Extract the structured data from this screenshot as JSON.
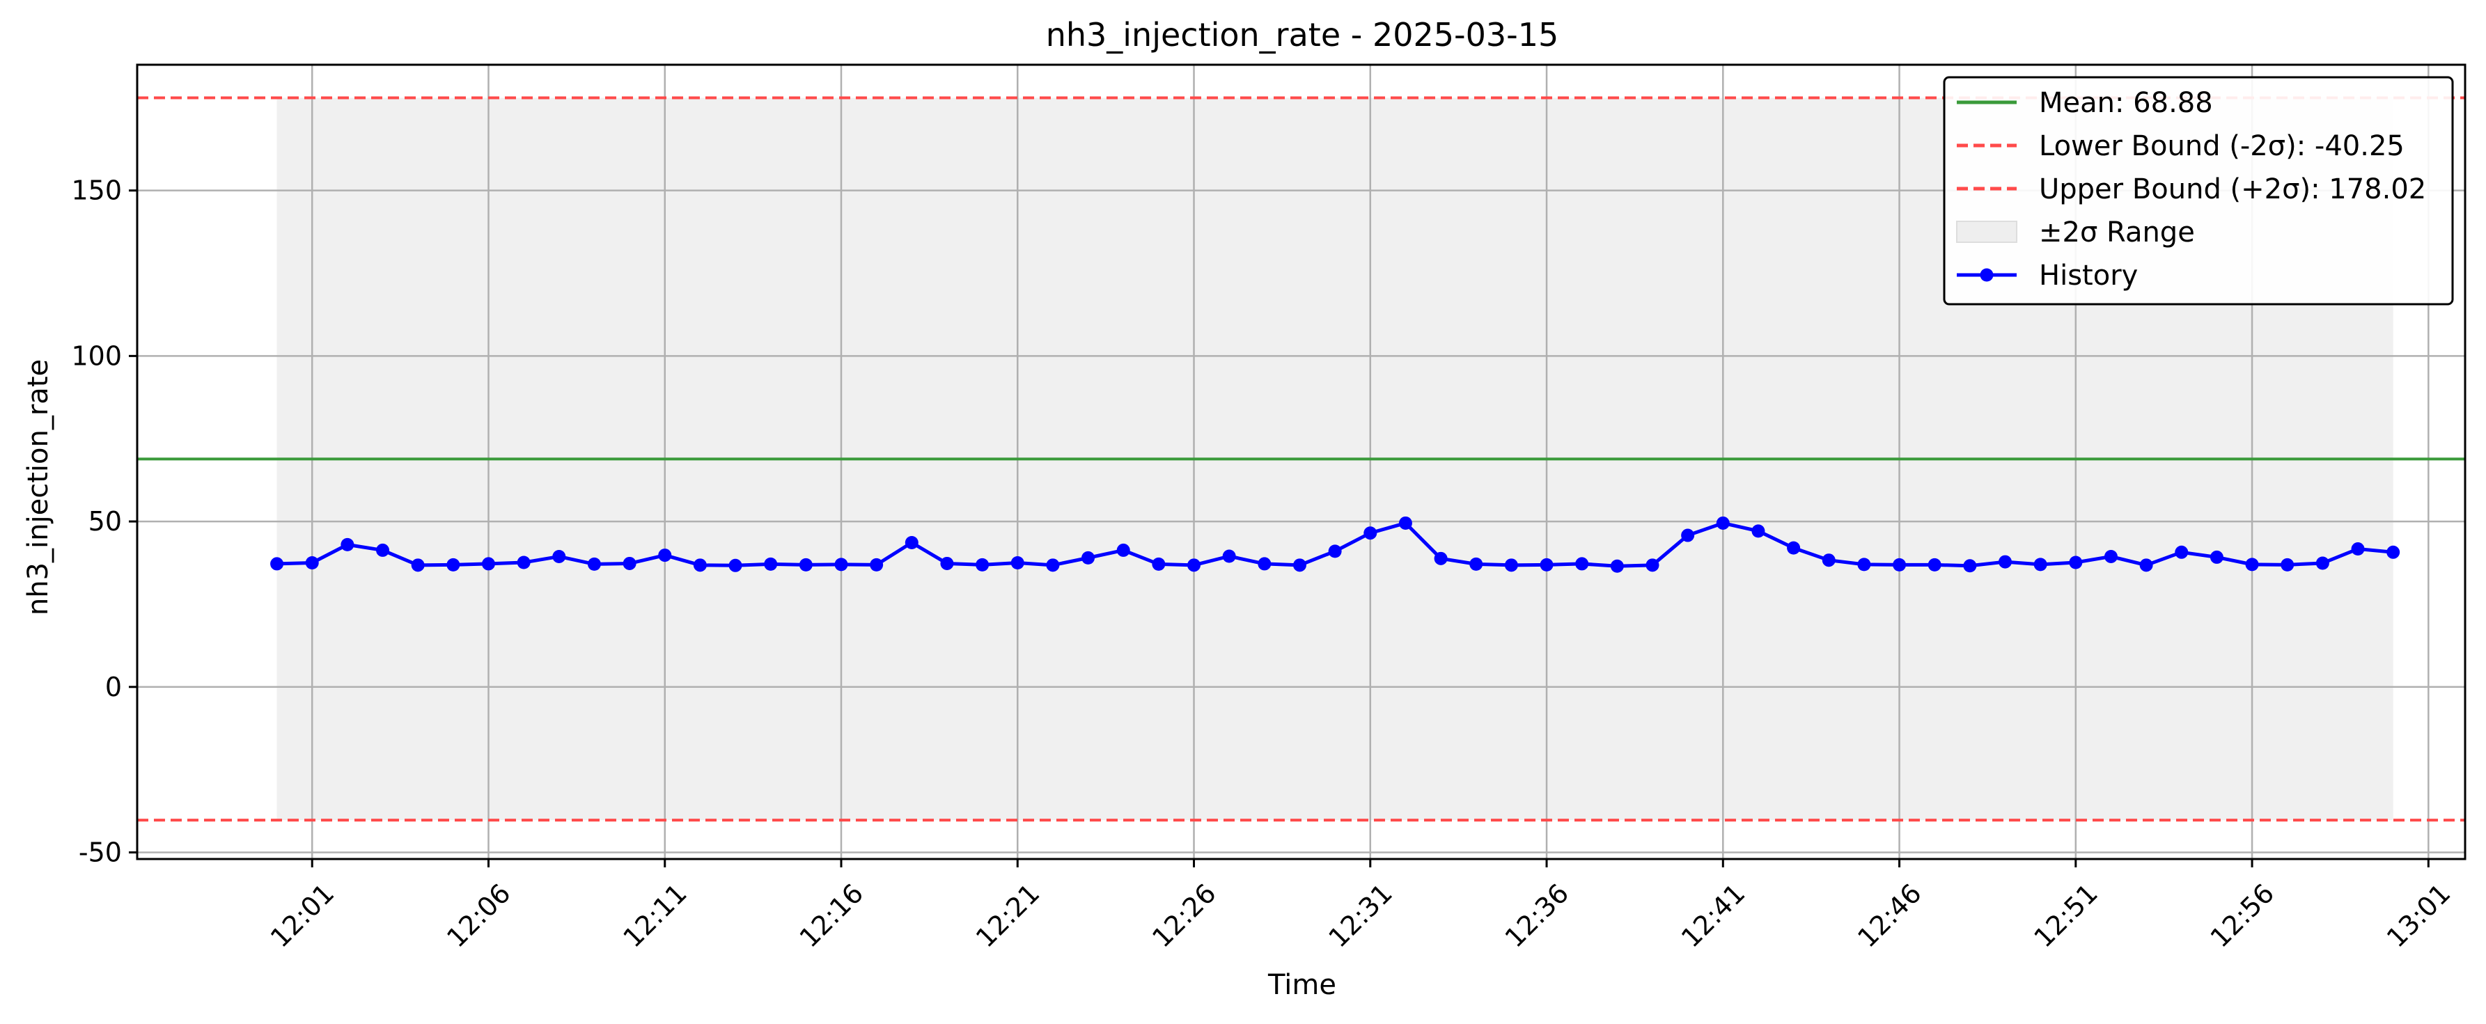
{
  "chart_data": {
    "type": "line",
    "title": "nh3_injection_rate - 2025-03-15",
    "xlabel": "Time",
    "ylabel": "nh3_injection_rate",
    "ylim": [
      -52,
      188
    ],
    "xlim_minutes": [
      -3.96,
      62.04
    ],
    "x_tick_labels": [
      "12:01",
      "12:06",
      "12:11",
      "12:16",
      "12:21",
      "12:26",
      "12:31",
      "12:36",
      "12:41",
      "12:46",
      "12:51",
      "12:56",
      "13:01"
    ],
    "x_tick_minutes": [
      1,
      6,
      11,
      16,
      21,
      26,
      31,
      36,
      41,
      46,
      51,
      56,
      61
    ],
    "y_ticks": [
      -50,
      0,
      50,
      100,
      150
    ],
    "grid": true,
    "mean": 68.88,
    "lower_bound": -40.25,
    "upper_bound": 178.02,
    "range_minutes": [
      0,
      60
    ],
    "series": [
      {
        "name": "History",
        "color": "#0000ff",
        "x_minutes": [
          0,
          1,
          2,
          3,
          4,
          5,
          6,
          7,
          8,
          9,
          10,
          11,
          12,
          13,
          14,
          15,
          16,
          17,
          18,
          19,
          20,
          21,
          22,
          23,
          24,
          25,
          26,
          27,
          28,
          29,
          30,
          31,
          32,
          33,
          34,
          35,
          36,
          37,
          38,
          39,
          40,
          41,
          42,
          43,
          44,
          45,
          46,
          47,
          48,
          49,
          50,
          51,
          52,
          53,
          54,
          55,
          56,
          57,
          58,
          59,
          60
        ],
        "values": [
          37.2,
          37.5,
          43.0,
          41.3,
          36.8,
          36.9,
          37.2,
          37.6,
          39.4,
          37.1,
          37.3,
          39.8,
          36.8,
          36.7,
          37.1,
          36.9,
          37.0,
          36.9,
          43.6,
          37.3,
          36.9,
          37.5,
          36.8,
          39.0,
          41.3,
          37.1,
          36.8,
          39.5,
          37.2,
          36.8,
          41.0,
          46.5,
          49.5,
          38.8,
          37.1,
          36.8,
          36.9,
          37.2,
          36.5,
          36.8,
          45.8,
          49.5,
          47.1,
          42.0,
          38.3,
          37.0,
          36.9,
          36.9,
          36.6,
          37.8,
          37.0,
          37.6,
          39.4,
          36.8,
          40.7,
          39.2,
          37.0,
          36.9,
          37.4,
          41.7,
          40.7
        ]
      }
    ],
    "legend": {
      "position": "top-right",
      "entries": [
        {
          "label": "Mean: 68.88",
          "color": "#3a9a3a",
          "style": "solid"
        },
        {
          "label": "Lower Bound (-2σ): -40.25",
          "color": "#ff4a4a",
          "style": "dashed"
        },
        {
          "label": "Upper Bound (+2σ): 178.02",
          "color": "#ff4a4a",
          "style": "dashed"
        },
        {
          "label": "±2σ Range",
          "color": "#eeeeee",
          "style": "fill"
        },
        {
          "label": "History",
          "color": "#0000ff",
          "style": "line-marker"
        }
      ]
    },
    "colors": {
      "mean": "#3a9a3a",
      "bounds": "#ff4a4a",
      "range_fill": "#f0f0f0",
      "grid": "#b0b0b0",
      "history": "#0000ff"
    }
  }
}
